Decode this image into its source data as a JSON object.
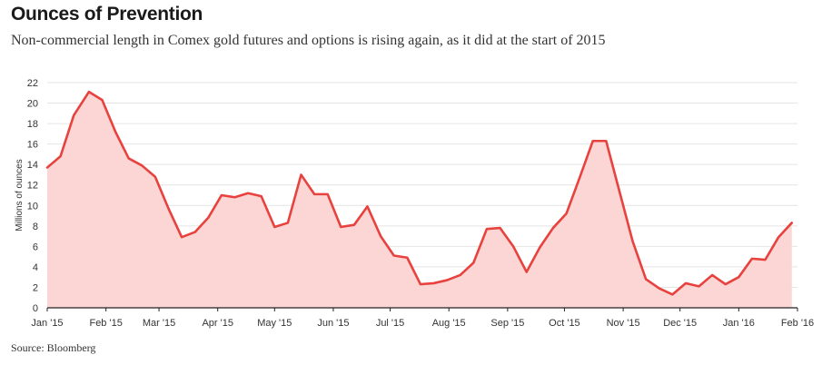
{
  "title": "Ounces of Prevention",
  "subtitle": "Non-commercial length in Comex gold futures and options is rising again, as it did at the start of 2015",
  "source": "Source: Bloomberg",
  "colors": {
    "line": "#e8423f",
    "area": "#fbd6d4",
    "grid": "#e4e4e4",
    "axis": "#222222"
  },
  "chart_data": {
    "type": "area",
    "ylabel": "Millions of ounces",
    "ylim": [
      0,
      22
    ],
    "yticks": [
      "0",
      "2",
      "4",
      "6",
      "8",
      "10",
      "12",
      "14",
      "16",
      "18",
      "20",
      "22"
    ],
    "xlim": [
      "2015-01-01",
      "2016-02-01"
    ],
    "xticks": [
      {
        "date": "2015-01-01",
        "label": "Jan '15"
      },
      {
        "date": "2015-02-01",
        "label": "Feb '15"
      },
      {
        "date": "2015-03-01",
        "label": "Mar '15"
      },
      {
        "date": "2015-04-01",
        "label": "Apr '15"
      },
      {
        "date": "2015-05-01",
        "label": "May '15"
      },
      {
        "date": "2015-06-01",
        "label": "Jun '15"
      },
      {
        "date": "2015-07-01",
        "label": "Jul '15"
      },
      {
        "date": "2015-08-01",
        "label": "Aug '15"
      },
      {
        "date": "2015-09-01",
        "label": "Sep '15"
      },
      {
        "date": "2015-10-01",
        "label": "Oct '15"
      },
      {
        "date": "2015-11-01",
        "label": "Nov '15"
      },
      {
        "date": "2015-12-01",
        "label": "Dec '15"
      },
      {
        "date": "2016-01-01",
        "label": "Jan '16"
      },
      {
        "date": "2016-02-01",
        "label": "Feb '16"
      }
    ],
    "grid": true,
    "series": [
      {
        "points": [
          {
            "x": "2015-01-01",
            "y": 13.7
          },
          {
            "x": "2015-01-08",
            "y": 14.8
          },
          {
            "x": "2015-01-15",
            "y": 18.8
          },
          {
            "x": "2015-01-23",
            "y": 21.1
          },
          {
            "x": "2015-01-30",
            "y": 20.3
          },
          {
            "x": "2015-02-06",
            "y": 17.2
          },
          {
            "x": "2015-02-13",
            "y": 14.6
          },
          {
            "x": "2015-02-20",
            "y": 13.9
          },
          {
            "x": "2015-02-27",
            "y": 12.8
          },
          {
            "x": "2015-03-06",
            "y": 9.7
          },
          {
            "x": "2015-03-13",
            "y": 6.9
          },
          {
            "x": "2015-03-20",
            "y": 7.4
          },
          {
            "x": "2015-03-27",
            "y": 8.8
          },
          {
            "x": "2015-04-03",
            "y": 11.0
          },
          {
            "x": "2015-04-10",
            "y": 10.8
          },
          {
            "x": "2015-04-17",
            "y": 11.2
          },
          {
            "x": "2015-04-24",
            "y": 10.9
          },
          {
            "x": "2015-05-01",
            "y": 7.9
          },
          {
            "x": "2015-05-08",
            "y": 8.3
          },
          {
            "x": "2015-05-15",
            "y": 13.0
          },
          {
            "x": "2015-05-22",
            "y": 11.1
          },
          {
            "x": "2015-05-29",
            "y": 11.1
          },
          {
            "x": "2015-06-05",
            "y": 7.9
          },
          {
            "x": "2015-06-12",
            "y": 8.1
          },
          {
            "x": "2015-06-19",
            "y": 9.9
          },
          {
            "x": "2015-06-26",
            "y": 7.0
          },
          {
            "x": "2015-07-03",
            "y": 5.1
          },
          {
            "x": "2015-07-10",
            "y": 4.9
          },
          {
            "x": "2015-07-17",
            "y": 2.3
          },
          {
            "x": "2015-07-24",
            "y": 2.4
          },
          {
            "x": "2015-07-31",
            "y": 2.7
          },
          {
            "x": "2015-08-07",
            "y": 3.2
          },
          {
            "x": "2015-08-14",
            "y": 4.4
          },
          {
            "x": "2015-08-21",
            "y": 7.7
          },
          {
            "x": "2015-08-28",
            "y": 7.8
          },
          {
            "x": "2015-09-04",
            "y": 6.0
          },
          {
            "x": "2015-09-11",
            "y": 3.5
          },
          {
            "x": "2015-09-18",
            "y": 5.9
          },
          {
            "x": "2015-09-25",
            "y": 7.8
          },
          {
            "x": "2015-10-02",
            "y": 9.2
          },
          {
            "x": "2015-10-09",
            "y": 12.7
          },
          {
            "x": "2015-10-16",
            "y": 16.3
          },
          {
            "x": "2015-10-23",
            "y": 16.3
          },
          {
            "x": "2015-10-30",
            "y": 11.4
          },
          {
            "x": "2015-11-06",
            "y": 6.5
          },
          {
            "x": "2015-11-13",
            "y": 2.8
          },
          {
            "x": "2015-11-20",
            "y": 1.9
          },
          {
            "x": "2015-11-27",
            "y": 1.3
          },
          {
            "x": "2015-12-04",
            "y": 2.4
          },
          {
            "x": "2015-12-11",
            "y": 2.1
          },
          {
            "x": "2015-12-18",
            "y": 3.2
          },
          {
            "x": "2015-12-25",
            "y": 2.3
          },
          {
            "x": "2016-01-01",
            "y": 3.0
          },
          {
            "x": "2016-01-08",
            "y": 4.8
          },
          {
            "x": "2016-01-15",
            "y": 4.7
          },
          {
            "x": "2016-01-22",
            "y": 6.9
          },
          {
            "x": "2016-01-29",
            "y": 8.3
          }
        ]
      }
    ]
  }
}
